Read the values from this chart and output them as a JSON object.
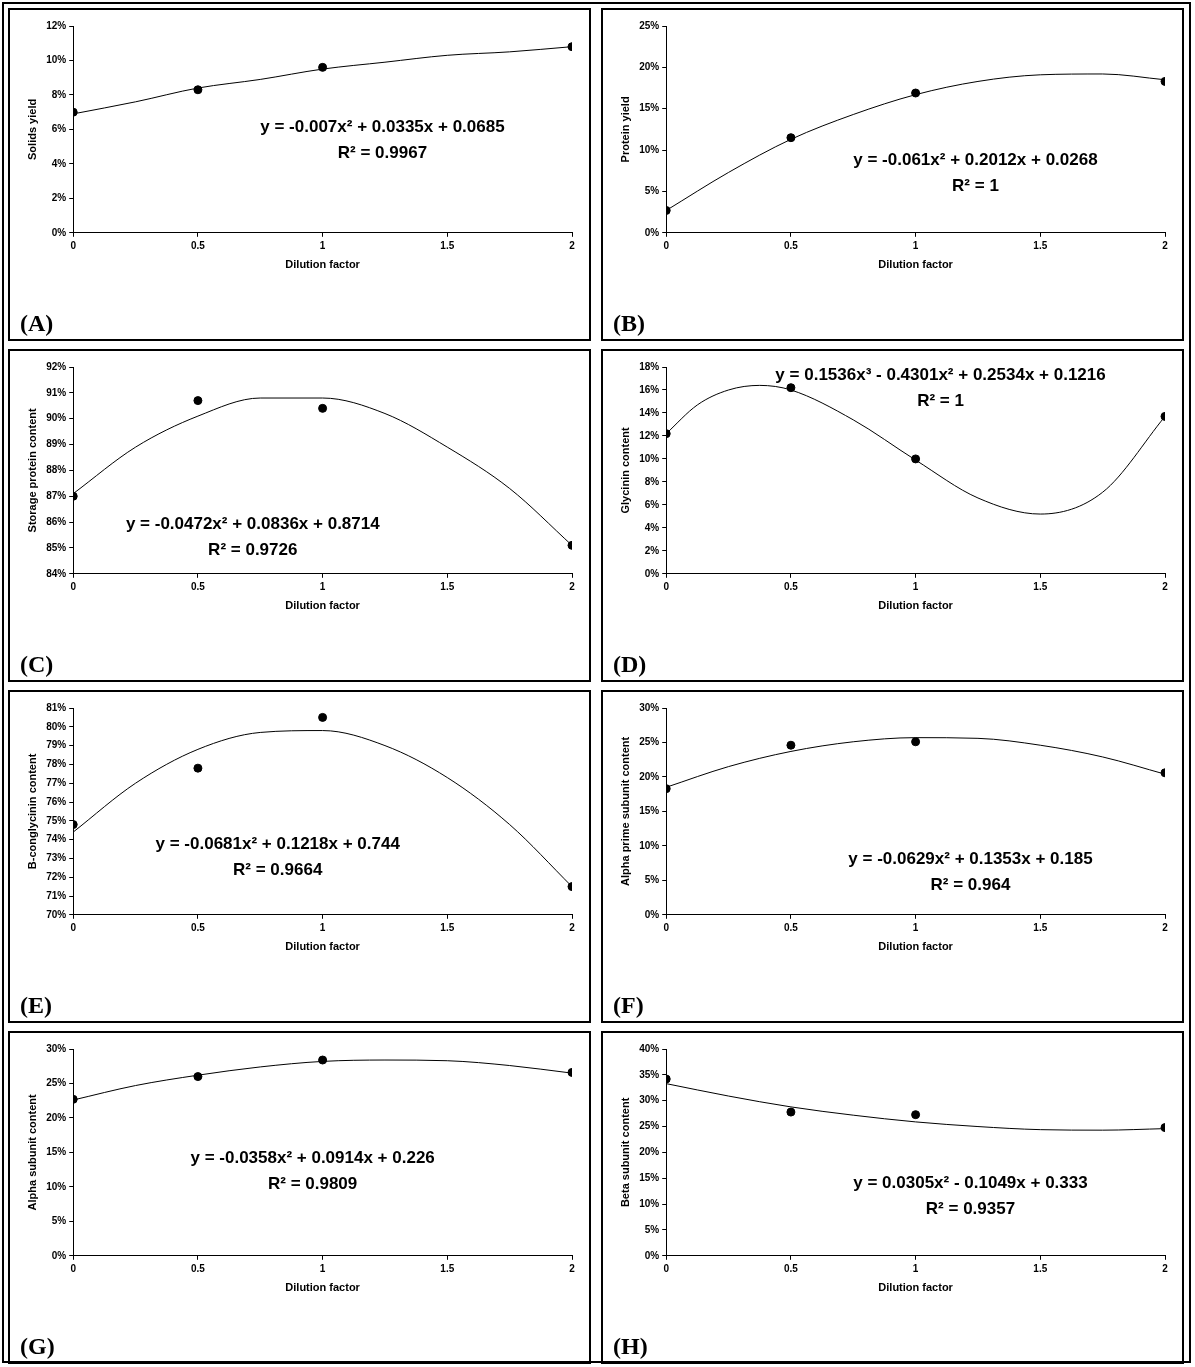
{
  "chart_data": [
    {
      "type": "scatter",
      "xlabel": "Dilution factor",
      "ylabel": "Solids yield",
      "annotations": [
        "y = -0.007x² + 0.0335x + 0.0685",
        "R² = 0.9967",
        "(A)"
      ],
      "xlim": [
        0,
        2
      ],
      "xticks": [
        0,
        0.5,
        1,
        1.5,
        2
      ],
      "ylim": [
        0,
        12
      ],
      "yticks": [
        {
          "value": 0,
          "label": "0%"
        },
        {
          "value": 2,
          "label": "2%"
        },
        {
          "value": 4,
          "label": "4%"
        },
        {
          "value": 6,
          "label": "6%"
        },
        {
          "value": 8,
          "label": "8%"
        },
        {
          "value": 10,
          "label": "10%"
        },
        {
          "value": 12,
          "label": "12%"
        }
      ],
      "series": [
        {
          "type": "scatter",
          "marker": "circle",
          "color": "#000000",
          "x": [
            0,
            0.5,
            1,
            2
          ],
          "values": [
            7.0,
            8.3,
            9.6,
            10.8
          ]
        },
        {
          "type": "line",
          "marker": "none",
          "color": "#000000",
          "x": [
            0,
            0.25,
            0.5,
            0.75,
            1,
            1.25,
            1.5,
            1.75,
            2
          ],
          "values": [
            6.9,
            7.6,
            8.4,
            8.9,
            9.5,
            9.9,
            10.3,
            10.5,
            10.8
          ]
        }
      ]
    },
    {
      "type": "scatter",
      "xlabel": "Dilution factor",
      "ylabel": "Protein yield",
      "annotations": [
        "y = -0.061x² + 0.2012x + 0.0268",
        "R² = 1",
        "(B)"
      ],
      "xlim": [
        0,
        2
      ],
      "xticks": [
        0,
        0.5,
        1,
        1.5,
        2
      ],
      "ylim": [
        0,
        25
      ],
      "yticks": [
        {
          "value": 0,
          "label": "0%"
        },
        {
          "value": 5,
          "label": "5%"
        },
        {
          "value": 10,
          "label": "10%"
        },
        {
          "value": 15,
          "label": "15%"
        },
        {
          "value": 20,
          "label": "20%"
        },
        {
          "value": 25,
          "label": "25%"
        }
      ],
      "series": [
        {
          "type": "scatter",
          "marker": "circle",
          "color": "#000000",
          "x": [
            0,
            0.5,
            1,
            2
          ],
          "values": [
            2.7,
            11.5,
            16.9,
            18.3
          ]
        },
        {
          "type": "line",
          "marker": "none",
          "color": "#000000",
          "x": [
            0,
            0.25,
            0.5,
            0.75,
            1,
            1.25,
            1.5,
            1.75,
            2
          ],
          "values": [
            2.7,
            7.3,
            11.3,
            14.3,
            16.7,
            18.3,
            19.1,
            19.2,
            18.5
          ]
        }
      ]
    },
    {
      "type": "scatter",
      "xlabel": "Dilution factor",
      "ylabel": "Storage protein content",
      "annotations": [
        "y = -0.0472x² + 0.0836x + 0.8714",
        "R² = 0.9726",
        "(C)"
      ],
      "xlim": [
        0,
        2
      ],
      "xticks": [
        0,
        0.5,
        1,
        1.5,
        2
      ],
      "ylim": [
        84,
        92
      ],
      "yticks": [
        {
          "value": 84,
          "label": "84%"
        },
        {
          "value": 85,
          "label": "85%"
        },
        {
          "value": 86,
          "label": "86%"
        },
        {
          "value": 87,
          "label": "87%"
        },
        {
          "value": 88,
          "label": "88%"
        },
        {
          "value": 89,
          "label": "89%"
        },
        {
          "value": 90,
          "label": "90%"
        },
        {
          "value": 91,
          "label": "91%"
        },
        {
          "value": 92,
          "label": "92%"
        }
      ],
      "series": [
        {
          "type": "scatter",
          "marker": "circle",
          "color": "#000000",
          "x": [
            0,
            0.5,
            1,
            2
          ],
          "values": [
            87.0,
            90.7,
            90.4,
            85.1
          ]
        },
        {
          "type": "line",
          "marker": "none",
          "color": "#000000",
          "x": [
            0,
            0.25,
            0.5,
            0.75,
            1,
            1.25,
            1.5,
            1.75,
            2
          ],
          "values": [
            87.1,
            88.9,
            90.1,
            90.8,
            90.8,
            90.2,
            88.9,
            87.3,
            85.1
          ]
        }
      ]
    },
    {
      "type": "scatter",
      "xlabel": "Dilution factor",
      "ylabel": "Glycinin content",
      "annotations": [
        "y = 0.1536x³ - 0.4301x² + 0.2534x + 0.1216",
        "R² = 1",
        "(D)"
      ],
      "xlim": [
        0,
        2
      ],
      "xticks": [
        0,
        0.5,
        1,
        1.5,
        2
      ],
      "ylim": [
        0,
        18
      ],
      "yticks": [
        {
          "value": 0,
          "label": "0%"
        },
        {
          "value": 2,
          "label": "2%"
        },
        {
          "value": 4,
          "label": "4%"
        },
        {
          "value": 6,
          "label": "6%"
        },
        {
          "value": 8,
          "label": "8%"
        },
        {
          "value": 10,
          "label": "10%"
        },
        {
          "value": 12,
          "label": "12%"
        },
        {
          "value": 14,
          "label": "14%"
        },
        {
          "value": 16,
          "label": "16%"
        },
        {
          "value": 18,
          "label": "18%"
        }
      ],
      "series": [
        {
          "type": "scatter",
          "marker": "circle",
          "color": "#000000",
          "x": [
            0,
            0.5,
            1,
            2
          ],
          "values": [
            12.2,
            16.2,
            10.0,
            13.7
          ]
        },
        {
          "type": "line",
          "marker": "none",
          "color": "#000000",
          "x": [
            0,
            0.125,
            0.25,
            0.375,
            0.5,
            0.75,
            1,
            1.25,
            1.5,
            1.75,
            2
          ],
          "values": [
            12.2,
            14.7,
            16.0,
            16.4,
            16.0,
            13.4,
            9.9,
            6.6,
            5.2,
            7.1,
            13.7
          ]
        }
      ]
    },
    {
      "type": "scatter",
      "xlabel": "Dilution factor",
      "ylabel": "B-conglycinin content",
      "annotations": [
        "y = -0.0681x² + 0.1218x + 0.744",
        "R² = 0.9664",
        "(E)"
      ],
      "xlim": [
        0,
        2
      ],
      "xticks": [
        0,
        0.5,
        1,
        1.5,
        2
      ],
      "ylim": [
        70,
        81
      ],
      "yticks": [
        {
          "value": 70,
          "label": "70%"
        },
        {
          "value": 71,
          "label": "71%"
        },
        {
          "value": 72,
          "label": "72%"
        },
        {
          "value": 73,
          "label": "73%"
        },
        {
          "value": 74,
          "label": "74%"
        },
        {
          "value": 75,
          "label": "75%"
        },
        {
          "value": 76,
          "label": "76%"
        },
        {
          "value": 77,
          "label": "77%"
        },
        {
          "value": 78,
          "label": "78%"
        },
        {
          "value": 79,
          "label": "79%"
        },
        {
          "value": 80,
          "label": "80%"
        },
        {
          "value": 81,
          "label": "81%"
        }
      ],
      "series": [
        {
          "type": "scatter",
          "marker": "circle",
          "color": "#000000",
          "x": [
            0,
            0.5,
            1,
            2
          ],
          "values": [
            74.8,
            77.8,
            80.5,
            71.5
          ]
        },
        {
          "type": "line",
          "marker": "none",
          "color": "#000000",
          "x": [
            0,
            0.25,
            0.5,
            0.75,
            1,
            1.25,
            1.5,
            1.75,
            2
          ],
          "values": [
            74.4,
            77.0,
            78.8,
            79.7,
            79.8,
            79.0,
            77.3,
            74.8,
            71.5
          ]
        }
      ]
    },
    {
      "type": "scatter",
      "xlabel": "Dilution factor",
      "ylabel": "Alpha prime subunit content",
      "annotations": [
        "y = -0.0629x² + 0.1353x + 0.185",
        "R² = 0.964",
        "(F)"
      ],
      "xlim": [
        0,
        2
      ],
      "xticks": [
        0,
        0.5,
        1,
        1.5,
        2
      ],
      "ylim": [
        0,
        30
      ],
      "yticks": [
        {
          "value": 0,
          "label": "0%"
        },
        {
          "value": 5,
          "label": "5%"
        },
        {
          "value": 10,
          "label": "10%"
        },
        {
          "value": 15,
          "label": "15%"
        },
        {
          "value": 20,
          "label": "20%"
        },
        {
          "value": 25,
          "label": "25%"
        },
        {
          "value": 30,
          "label": "30%"
        }
      ],
      "series": [
        {
          "type": "scatter",
          "marker": "circle",
          "color": "#000000",
          "x": [
            0,
            0.5,
            1,
            2
          ],
          "values": [
            18.3,
            24.6,
            25.1,
            20.6
          ]
        },
        {
          "type": "line",
          "marker": "none",
          "color": "#000000",
          "x": [
            0,
            0.25,
            0.5,
            0.75,
            1,
            1.25,
            1.5,
            1.75,
            2
          ],
          "values": [
            18.5,
            21.5,
            23.7,
            25.1,
            25.7,
            25.6,
            24.6,
            22.9,
            20.4
          ]
        }
      ]
    },
    {
      "type": "scatter",
      "xlabel": "Dilution factor",
      "ylabel": "Alpha subunit content",
      "annotations": [
        "y = -0.0358x² + 0.0914x + 0.226",
        "R² = 0.9809",
        "(G)"
      ],
      "xlim": [
        0,
        2
      ],
      "xticks": [
        0,
        0.5,
        1,
        1.5,
        2
      ],
      "ylim": [
        0,
        30
      ],
      "yticks": [
        {
          "value": 0,
          "label": "0%"
        },
        {
          "value": 5,
          "label": "5%"
        },
        {
          "value": 10,
          "label": "10%"
        },
        {
          "value": 15,
          "label": "15%"
        },
        {
          "value": 20,
          "label": "20%"
        },
        {
          "value": 25,
          "label": "25%"
        },
        {
          "value": 30,
          "label": "30%"
        }
      ],
      "series": [
        {
          "type": "scatter",
          "marker": "circle",
          "color": "#000000",
          "x": [
            0,
            0.5,
            1,
            2
          ],
          "values": [
            22.7,
            26.0,
            28.4,
            26.6
          ]
        },
        {
          "type": "line",
          "marker": "none",
          "color": "#000000",
          "x": [
            0,
            0.25,
            0.5,
            0.75,
            1,
            1.25,
            1.5,
            1.75,
            2
          ],
          "values": [
            22.6,
            24.7,
            26.2,
            27.4,
            28.2,
            28.4,
            28.3,
            27.6,
            26.5
          ]
        }
      ]
    },
    {
      "type": "scatter",
      "xlabel": "Dilution factor",
      "ylabel": "Beta subunit content",
      "annotations": [
        "y = 0.0305x² - 0.1049x + 0.333",
        "R² = 0.9357",
        "(H)"
      ],
      "xlim": [
        0,
        2
      ],
      "xticks": [
        0,
        0.5,
        1,
        1.5,
        2
      ],
      "ylim": [
        0,
        40
      ],
      "yticks": [
        {
          "value": 0,
          "label": "0%"
        },
        {
          "value": 5,
          "label": "5%"
        },
        {
          "value": 10,
          "label": "10%"
        },
        {
          "value": 15,
          "label": "15%"
        },
        {
          "value": 20,
          "label": "20%"
        },
        {
          "value": 25,
          "label": "25%"
        },
        {
          "value": 30,
          "label": "30%"
        },
        {
          "value": 35,
          "label": "35%"
        },
        {
          "value": 40,
          "label": "40%"
        }
      ],
      "series": [
        {
          "type": "scatter",
          "marker": "circle",
          "color": "#000000",
          "x": [
            0,
            0.5,
            1,
            2
          ],
          "values": [
            34.2,
            27.8,
            27.3,
            24.8
          ]
        },
        {
          "type": "line",
          "marker": "none",
          "color": "#000000",
          "x": [
            0,
            0.25,
            0.5,
            0.75,
            1,
            1.25,
            1.5,
            1.75,
            2
          ],
          "values": [
            33.3,
            30.9,
            28.8,
            27.2,
            25.9,
            25.0,
            24.4,
            24.3,
            24.6
          ]
        }
      ]
    }
  ]
}
